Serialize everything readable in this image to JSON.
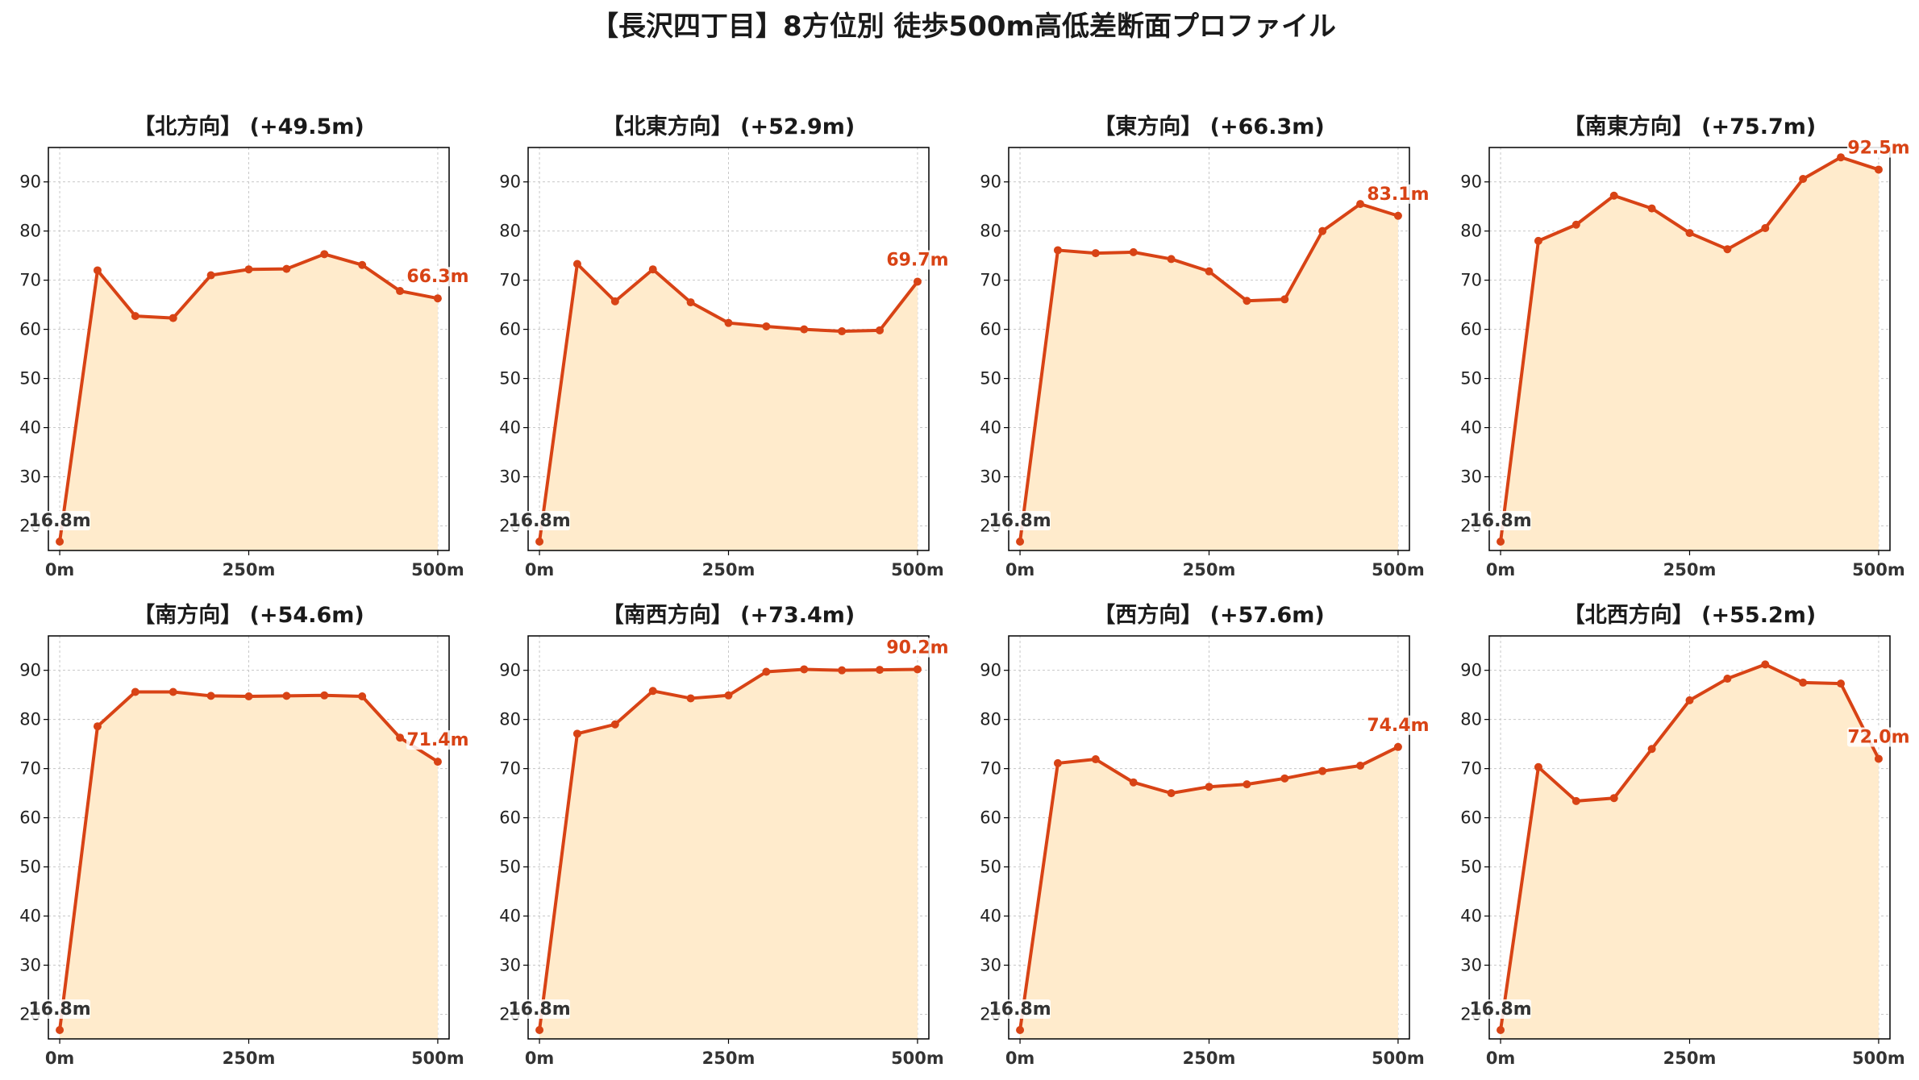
{
  "figure": {
    "title": "【長沢四丁目】8方位別 徒歩500m高低差断面プロファイル"
  },
  "style": {
    "line_color": "#d84315",
    "fill_color": "#ffebcc",
    "grid_color": "#c8c8c8",
    "start_label_color": "#333333"
  },
  "chart_data": [
    {
      "type": "area",
      "title": "【北方向】 (+49.5m)",
      "x": [
        0,
        50,
        100,
        150,
        200,
        250,
        300,
        350,
        400,
        450,
        500
      ],
      "y": [
        16.8,
        72.0,
        62.7,
        62.3,
        71.0,
        72.2,
        72.3,
        75.3,
        73.1,
        67.8,
        66.3
      ],
      "xticks": [
        "0m",
        "250m",
        "500m"
      ],
      "yticks": [
        20,
        30,
        40,
        50,
        60,
        70,
        80,
        90
      ],
      "ylim": [
        15,
        97
      ],
      "xlim": [
        -15,
        515
      ],
      "grid": true,
      "start_label": "16.8m",
      "end_label": "66.3m"
    },
    {
      "type": "area",
      "title": "【北東方向】 (+52.9m)",
      "x": [
        0,
        50,
        100,
        150,
        200,
        250,
        300,
        350,
        400,
        450,
        500
      ],
      "y": [
        16.8,
        73.3,
        65.7,
        72.2,
        65.5,
        61.3,
        60.6,
        60.0,
        59.6,
        59.8,
        69.7
      ],
      "xticks": [
        "0m",
        "250m",
        "500m"
      ],
      "yticks": [
        20,
        30,
        40,
        50,
        60,
        70,
        80,
        90
      ],
      "ylim": [
        15,
        97
      ],
      "xlim": [
        -15,
        515
      ],
      "grid": true,
      "start_label": "16.8m",
      "end_label": "69.7m"
    },
    {
      "type": "area",
      "title": "【東方向】 (+66.3m)",
      "x": [
        0,
        50,
        100,
        150,
        200,
        250,
        300,
        350,
        400,
        450,
        500
      ],
      "y": [
        16.8,
        76.1,
        75.5,
        75.7,
        74.3,
        71.8,
        65.8,
        66.1,
        80.0,
        85.5,
        83.1
      ],
      "xticks": [
        "0m",
        "250m",
        "500m"
      ],
      "yticks": [
        20,
        30,
        40,
        50,
        60,
        70,
        80,
        90
      ],
      "ylim": [
        15,
        97
      ],
      "xlim": [
        -15,
        515
      ],
      "grid": true,
      "start_label": "16.8m",
      "end_label": "83.1m"
    },
    {
      "type": "area",
      "title": "【南東方向】 (+75.7m)",
      "x": [
        0,
        50,
        100,
        150,
        200,
        250,
        300,
        350,
        400,
        450,
        500
      ],
      "y": [
        16.8,
        78.0,
        81.3,
        87.2,
        84.6,
        79.6,
        76.3,
        80.6,
        90.6,
        95.0,
        92.5
      ],
      "xticks": [
        "0m",
        "250m",
        "500m"
      ],
      "yticks": [
        20,
        30,
        40,
        50,
        60,
        70,
        80,
        90
      ],
      "ylim": [
        15,
        97
      ],
      "xlim": [
        -15,
        515
      ],
      "grid": true,
      "start_label": "16.8m",
      "end_label": "92.5m"
    },
    {
      "type": "area",
      "title": "【南方向】 (+54.6m)",
      "x": [
        0,
        50,
        100,
        150,
        200,
        250,
        300,
        350,
        400,
        450,
        500
      ],
      "y": [
        16.8,
        78.6,
        85.6,
        85.6,
        84.8,
        84.7,
        84.8,
        84.9,
        84.7,
        76.3,
        71.4
      ],
      "xticks": [
        "0m",
        "250m",
        "500m"
      ],
      "yticks": [
        20,
        30,
        40,
        50,
        60,
        70,
        80,
        90
      ],
      "ylim": [
        15,
        97
      ],
      "xlim": [
        -15,
        515
      ],
      "grid": true,
      "start_label": "16.8m",
      "end_label": "71.4m"
    },
    {
      "type": "area",
      "title": "【南西方向】 (+73.4m)",
      "x": [
        0,
        50,
        100,
        150,
        200,
        250,
        300,
        350,
        400,
        450,
        500
      ],
      "y": [
        16.8,
        77.1,
        79.0,
        85.8,
        84.3,
        84.9,
        89.7,
        90.2,
        90.0,
        90.1,
        90.2
      ],
      "xticks": [
        "0m",
        "250m",
        "500m"
      ],
      "yticks": [
        20,
        30,
        40,
        50,
        60,
        70,
        80,
        90
      ],
      "ylim": [
        15,
        97
      ],
      "xlim": [
        -15,
        515
      ],
      "grid": true,
      "start_label": "16.8m",
      "end_label": "90.2m"
    },
    {
      "type": "area",
      "title": "【西方向】 (+57.6m)",
      "x": [
        0,
        50,
        100,
        150,
        200,
        250,
        300,
        350,
        400,
        450,
        500
      ],
      "y": [
        16.8,
        71.1,
        71.9,
        67.2,
        65.0,
        66.3,
        66.8,
        68.0,
        69.5,
        70.6,
        74.4
      ],
      "xticks": [
        "0m",
        "250m",
        "500m"
      ],
      "yticks": [
        20,
        30,
        40,
        50,
        60,
        70,
        80,
        90
      ],
      "ylim": [
        15,
        97
      ],
      "xlim": [
        -15,
        515
      ],
      "grid": true,
      "start_label": "16.8m",
      "end_label": "74.4m"
    },
    {
      "type": "area",
      "title": "【北西方向】 (+55.2m)",
      "x": [
        0,
        50,
        100,
        150,
        200,
        250,
        300,
        350,
        400,
        450,
        500
      ],
      "y": [
        16.8,
        70.3,
        63.4,
        64.0,
        74.0,
        83.9,
        88.3,
        91.2,
        87.5,
        87.3,
        72.0
      ],
      "xticks": [
        "0m",
        "250m",
        "500m"
      ],
      "yticks": [
        20,
        30,
        40,
        50,
        60,
        70,
        80,
        90
      ],
      "ylim": [
        15,
        97
      ],
      "xlim": [
        -15,
        515
      ],
      "grid": true,
      "start_label": "16.8m",
      "end_label": "72.0m"
    }
  ]
}
